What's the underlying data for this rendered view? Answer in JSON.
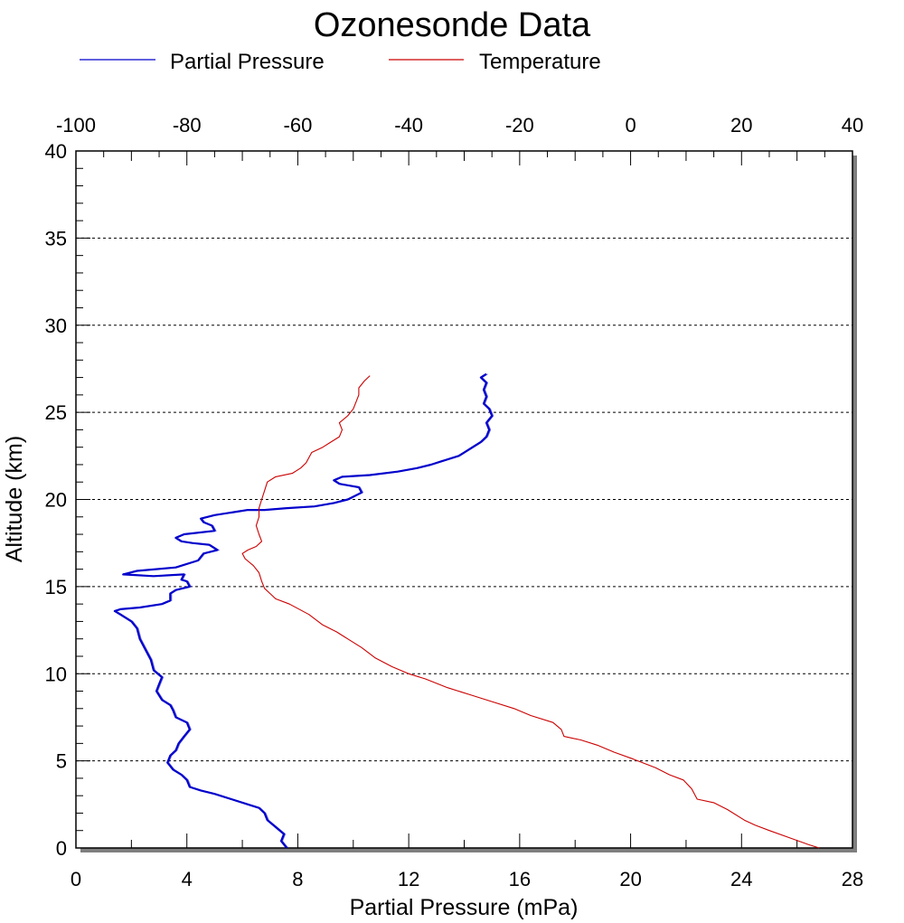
{
  "chart_data": {
    "type": "line",
    "title": "Ozonesonde Data",
    "xlabel": "Partial Pressure (mPa)",
    "ylabel": "Altitude (km)",
    "x_bottom_ticks": [
      "0",
      "4",
      "8",
      "12",
      "16",
      "20",
      "24",
      "28"
    ],
    "x_top_ticks": [
      "-100",
      "-80",
      "-60",
      "-40",
      "-20",
      "0",
      "20",
      "40"
    ],
    "y_ticks": [
      "0",
      "5",
      "10",
      "15",
      "20",
      "25",
      "30",
      "35",
      "40"
    ],
    "xlim_bottom": [
      0,
      28
    ],
    "xlim_top": [
      -100,
      40
    ],
    "ylim": [
      0,
      40
    ],
    "grid": "horizontal dashed",
    "legend_position": "top",
    "series": [
      {
        "name": "Partial Pressure",
        "axis": "bottom",
        "color": "#0000cc",
        "points": [
          [
            7.6,
            0.0
          ],
          [
            7.4,
            0.4
          ],
          [
            7.5,
            0.8
          ],
          [
            7.2,
            1.2
          ],
          [
            6.9,
            1.6
          ],
          [
            6.8,
            2.0
          ],
          [
            6.6,
            2.3
          ],
          [
            6.2,
            2.5
          ],
          [
            5.6,
            2.8
          ],
          [
            5.0,
            3.1
          ],
          [
            4.5,
            3.3
          ],
          [
            4.1,
            3.5
          ],
          [
            4.0,
            3.9
          ],
          [
            3.8,
            4.2
          ],
          [
            3.5,
            4.5
          ],
          [
            3.3,
            4.9
          ],
          [
            3.4,
            5.3
          ],
          [
            3.6,
            5.6
          ],
          [
            3.7,
            6.0
          ],
          [
            3.9,
            6.4
          ],
          [
            4.1,
            6.8
          ],
          [
            4.0,
            7.2
          ],
          [
            3.6,
            7.5
          ],
          [
            3.5,
            7.9
          ],
          [
            3.4,
            8.2
          ],
          [
            3.1,
            8.5
          ],
          [
            2.9,
            9.0
          ],
          [
            3.0,
            9.4
          ],
          [
            3.1,
            9.8
          ],
          [
            2.8,
            10.2
          ],
          [
            2.7,
            10.8
          ],
          [
            2.5,
            11.4
          ],
          [
            2.3,
            12.0
          ],
          [
            2.2,
            12.6
          ],
          [
            2.0,
            13.0
          ],
          [
            1.6,
            13.4
          ],
          [
            1.4,
            13.6
          ],
          [
            1.6,
            13.7
          ],
          [
            2.3,
            13.8
          ],
          [
            3.1,
            14.0
          ],
          [
            3.4,
            14.2
          ],
          [
            3.4,
            14.6
          ],
          [
            3.6,
            14.8
          ],
          [
            4.1,
            15.0
          ],
          [
            4.0,
            15.3
          ],
          [
            3.8,
            15.4
          ],
          [
            3.9,
            15.7
          ],
          [
            2.8,
            15.6
          ],
          [
            1.7,
            15.7
          ],
          [
            2.2,
            15.9
          ],
          [
            3.6,
            16.1
          ],
          [
            4.4,
            16.5
          ],
          [
            4.6,
            16.9
          ],
          [
            5.1,
            17.1
          ],
          [
            4.8,
            17.4
          ],
          [
            4.2,
            17.5
          ],
          [
            3.8,
            17.6
          ],
          [
            3.6,
            17.8
          ],
          [
            3.9,
            18.0
          ],
          [
            5.0,
            18.2
          ],
          [
            4.9,
            18.5
          ],
          [
            4.6,
            18.7
          ],
          [
            4.5,
            18.9
          ],
          [
            5.0,
            19.1
          ],
          [
            5.8,
            19.3
          ],
          [
            6.2,
            19.4
          ],
          [
            6.8,
            19.4
          ],
          [
            7.6,
            19.5
          ],
          [
            8.6,
            19.6
          ],
          [
            9.3,
            19.8
          ],
          [
            9.8,
            20.0
          ],
          [
            10.3,
            20.4
          ],
          [
            10.2,
            20.7
          ],
          [
            9.5,
            20.9
          ],
          [
            9.3,
            21.1
          ],
          [
            9.6,
            21.3
          ],
          [
            10.6,
            21.4
          ],
          [
            11.6,
            21.6
          ],
          [
            12.3,
            21.8
          ],
          [
            12.8,
            22.0
          ],
          [
            13.2,
            22.2
          ],
          [
            13.8,
            22.5
          ],
          [
            14.0,
            22.7
          ],
          [
            14.3,
            23.0
          ],
          [
            14.6,
            23.3
          ],
          [
            14.8,
            23.6
          ],
          [
            14.9,
            24.0
          ],
          [
            14.8,
            24.4
          ],
          [
            15.0,
            24.8
          ],
          [
            14.9,
            25.2
          ],
          [
            14.7,
            25.5
          ],
          [
            14.8,
            25.9
          ],
          [
            14.7,
            26.3
          ],
          [
            14.8,
            26.7
          ],
          [
            14.6,
            27.0
          ],
          [
            14.8,
            27.2
          ]
        ]
      },
      {
        "name": "Temperature",
        "axis": "top",
        "color": "#cc0000",
        "points": [
          [
            34.0,
            0.0
          ],
          [
            32.0,
            0.2
          ],
          [
            28.5,
            0.6
          ],
          [
            25.0,
            1.0
          ],
          [
            22.5,
            1.3
          ],
          [
            20.5,
            1.6
          ],
          [
            17.5,
            2.2
          ],
          [
            15.0,
            2.6
          ],
          [
            12.0,
            2.8
          ],
          [
            11.0,
            3.4
          ],
          [
            9.5,
            3.9
          ],
          [
            7.0,
            4.2
          ],
          [
            4.5,
            4.6
          ],
          [
            0.5,
            5.1
          ],
          [
            -3.0,
            5.5
          ],
          [
            -6.0,
            5.9
          ],
          [
            -9.0,
            6.2
          ],
          [
            -12.0,
            6.4
          ],
          [
            -12.5,
            6.8
          ],
          [
            -14.0,
            7.2
          ],
          [
            -18.0,
            7.6
          ],
          [
            -21.0,
            8.0
          ],
          [
            -25.0,
            8.4
          ],
          [
            -29.0,
            8.8
          ],
          [
            -33.0,
            9.2
          ],
          [
            -37.0,
            9.7
          ],
          [
            -40.0,
            10.0
          ],
          [
            -43.0,
            10.4
          ],
          [
            -46.0,
            10.9
          ],
          [
            -48.5,
            11.5
          ],
          [
            -51.0,
            12.0
          ],
          [
            -53.0,
            12.4
          ],
          [
            -55.5,
            12.8
          ],
          [
            -58.0,
            13.4
          ],
          [
            -61.5,
            14.0
          ],
          [
            -64.0,
            14.3
          ],
          [
            -65.0,
            14.6
          ],
          [
            -66.0,
            14.9
          ],
          [
            -66.5,
            15.3
          ],
          [
            -67.0,
            15.8
          ],
          [
            -68.0,
            16.2
          ],
          [
            -69.5,
            16.6
          ],
          [
            -70.0,
            16.9
          ],
          [
            -69.0,
            17.1
          ],
          [
            -67.5,
            17.3
          ],
          [
            -66.5,
            17.6
          ],
          [
            -67.0,
            18.0
          ],
          [
            -67.5,
            18.5
          ],
          [
            -67.0,
            19.0
          ],
          [
            -67.0,
            19.5
          ],
          [
            -66.5,
            20.0
          ],
          [
            -66.0,
            20.5
          ],
          [
            -65.5,
            21.0
          ],
          [
            -64.0,
            21.3
          ],
          [
            -61.0,
            21.5
          ],
          [
            -59.5,
            21.8
          ],
          [
            -58.5,
            22.1
          ],
          [
            -58.0,
            22.4
          ],
          [
            -57.5,
            22.7
          ],
          [
            -55.5,
            23.0
          ],
          [
            -54.0,
            23.3
          ],
          [
            -52.5,
            23.6
          ],
          [
            -52.0,
            24.0
          ],
          [
            -52.5,
            24.4
          ],
          [
            -51.0,
            24.8
          ],
          [
            -50.0,
            25.2
          ],
          [
            -49.5,
            25.6
          ],
          [
            -49.0,
            26.0
          ],
          [
            -49.0,
            26.4
          ],
          [
            -48.0,
            26.8
          ],
          [
            -47.0,
            27.1
          ]
        ]
      }
    ]
  }
}
